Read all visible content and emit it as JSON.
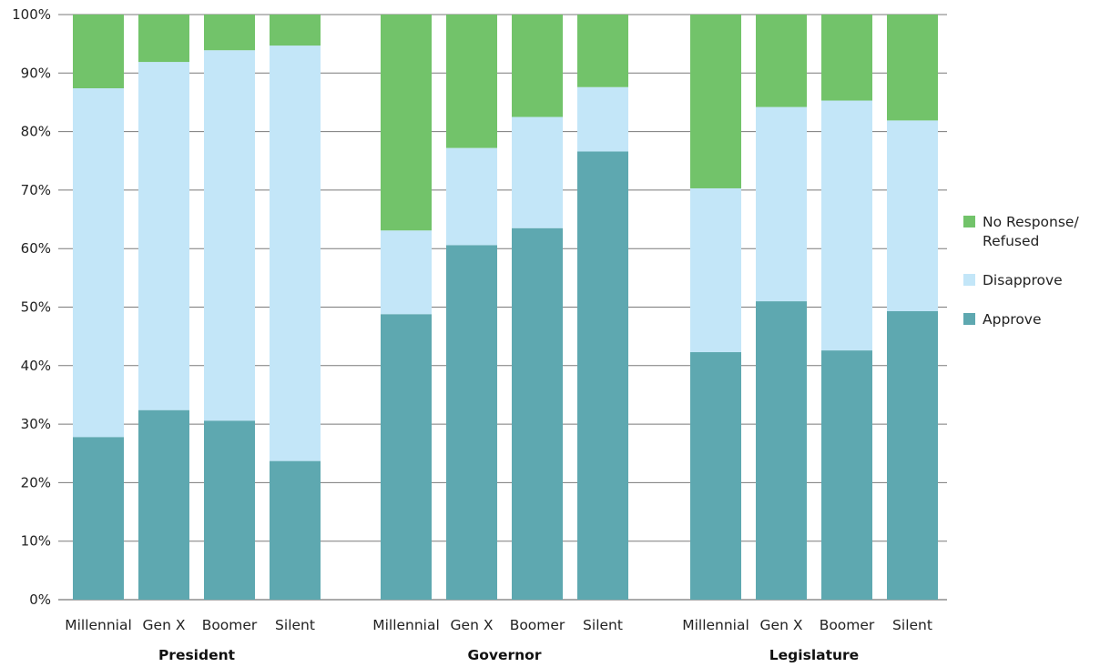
{
  "chart_data": {
    "type": "bar",
    "stacked": true,
    "normalized": true,
    "ylim": [
      0,
      100
    ],
    "yticks": [
      "0%",
      "10%",
      "20%",
      "30%",
      "40%",
      "50%",
      "60%",
      "70%",
      "80%",
      "90%",
      "100%"
    ],
    "grid": true,
    "legend_position": "right",
    "groups": [
      {
        "label": "President",
        "categories": [
          "Millennial",
          "Gen X",
          "Boomer",
          "Silent"
        ],
        "series": [
          {
            "name": "Approve",
            "values": [
              27.8,
              32.4,
              30.6,
              23.7
            ]
          },
          {
            "name": "Disapprove",
            "values": [
              59.6,
              59.5,
              63.3,
              71.0
            ]
          },
          {
            "name": "No Response/ Refused",
            "values": [
              12.6,
              8.1,
              6.1,
              5.3
            ]
          }
        ]
      },
      {
        "label": "Governor",
        "categories": [
          "Millennial",
          "Gen X",
          "Boomer",
          "Silent"
        ],
        "series": [
          {
            "name": "Approve",
            "values": [
              48.8,
              60.6,
              63.5,
              76.6
            ]
          },
          {
            "name": "Disapprove",
            "values": [
              14.3,
              16.6,
              19.0,
              11.0
            ]
          },
          {
            "name": "No Response/ Refused",
            "values": [
              36.9,
              22.8,
              17.5,
              12.4
            ]
          }
        ]
      },
      {
        "label": "Legislature",
        "categories": [
          "Millennial",
          "Gen X",
          "Boomer",
          "Silent"
        ],
        "series": [
          {
            "name": "Approve",
            "values": [
              42.3,
              51.0,
              42.6,
              49.3
            ]
          },
          {
            "name": "Disapprove",
            "values": [
              28.0,
              33.2,
              42.7,
              32.6
            ]
          },
          {
            "name": "No Response/ Refused",
            "values": [
              29.7,
              15.8,
              14.7,
              18.1
            ]
          }
        ]
      }
    ],
    "legend": [
      {
        "name": "No Response/\nRefused",
        "color": "#72c36a"
      },
      {
        "name": "Disapprove",
        "color": "#c3e6f8"
      },
      {
        "name": "Approve",
        "color": "#5ea8b0"
      }
    ],
    "colors": {
      "Approve": "#5ea8b0",
      "Disapprove": "#c3e6f8",
      "No Response/ Refused": "#72c36a"
    }
  }
}
